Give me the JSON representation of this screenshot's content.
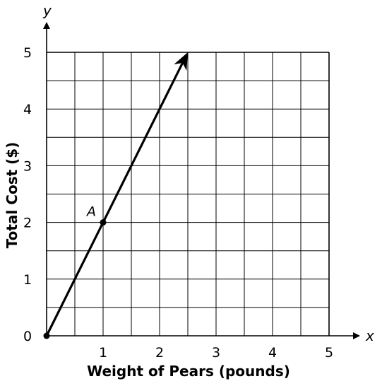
{
  "chart_data": {
    "type": "line",
    "xlabel": "Weight of Pears (pounds)",
    "ylabel": "Total Cost ($)",
    "x_axis_letter": "x",
    "y_axis_letter": "y",
    "xlim": [
      0,
      5
    ],
    "ylim": [
      0,
      5
    ],
    "grid_step": 0.5,
    "x_ticks": [
      1,
      2,
      3,
      4,
      5
    ],
    "y_ticks": [
      0,
      1,
      2,
      3,
      4,
      5
    ],
    "series": [
      {
        "name": "cost",
        "x": [
          0,
          2.5
        ],
        "y": [
          0,
          5
        ],
        "arrow_end": true
      }
    ],
    "points": [
      {
        "label": "A",
        "x": 1,
        "y": 2
      },
      {
        "label": "",
        "x": 0,
        "y": 0
      }
    ]
  }
}
